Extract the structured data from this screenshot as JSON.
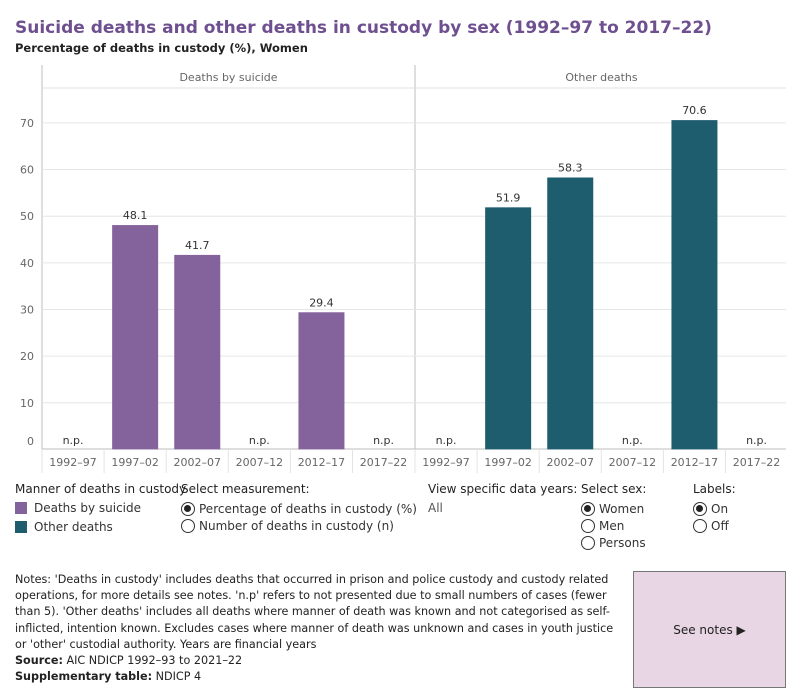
{
  "title": "Suicide deaths and other deaths in custody by sex (1992–97 to 2017–22)",
  "subtitle": "Percentage of deaths in custody (%), Women",
  "colors": {
    "suicide": "#84629b",
    "other": "#1e5d6e",
    "title": "#6e4f8f",
    "grid": "#e6e6e6",
    "panel_border": "#bdbdbd"
  },
  "chart_data": {
    "type": "bar",
    "categories": [
      "1992–97",
      "1997–02",
      "2002–07",
      "2007–12",
      "2012–17",
      "2017–22"
    ],
    "panels": [
      {
        "name": "Deaths by suicide",
        "color_key": "suicide",
        "values": [
          null,
          48.1,
          41.7,
          null,
          29.4,
          null
        ]
      },
      {
        "name": "Other deaths",
        "color_key": "other",
        "values": [
          null,
          51.9,
          58.3,
          null,
          70.6,
          null
        ]
      }
    ],
    "value_labels": {
      "Deaths by suicide": [
        "n.p.",
        "48.1",
        "41.7",
        "n.p.",
        "29.4",
        "n.p."
      ],
      "Other deaths": [
        "n.p.",
        "51.9",
        "58.3",
        "n.p.",
        "70.6",
        "n.p."
      ]
    },
    "ylim": [
      0,
      80
    ],
    "yticks": [
      0,
      10,
      20,
      30,
      40,
      50,
      60,
      70
    ],
    "grid": true
  },
  "legend": {
    "title": "Manner of deaths in custody",
    "items": [
      {
        "label": "Deaths by suicide",
        "color": "#84629b"
      },
      {
        "label": "Other deaths",
        "color": "#1e5d6e"
      }
    ]
  },
  "measurement": {
    "title": "Select measurement:",
    "options": [
      {
        "label": "Percentage of deaths in custody (%)",
        "selected": true
      },
      {
        "label": "Number of deaths in custody (n)",
        "selected": false
      }
    ]
  },
  "years": {
    "title": "View specific data years:",
    "value": "All"
  },
  "sex": {
    "title": "Select sex:",
    "options": [
      {
        "label": "Women",
        "selected": true
      },
      {
        "label": "Men",
        "selected": false
      },
      {
        "label": "Persons",
        "selected": false
      }
    ]
  },
  "labels": {
    "title": "Labels:",
    "options": [
      {
        "label": "On",
        "selected": true
      },
      {
        "label": "Off",
        "selected": false
      }
    ]
  },
  "notes": {
    "label": "Notes:",
    "text": "'Deaths in custody' includes deaths that occurred in prison and police custody and custody related operations, for more details see notes. 'n.p' refers to not presented due to small numbers of cases (fewer than 5). 'Other deaths' includes all deaths where manner of death was known and not categorised as self-inflicted, intention known. Excludes cases where manner of death was unknown and cases in youth justice or 'other' custodial authority. Years are financial years",
    "source_label": "Source:",
    "source": "AIC NDICP 1992–93 to 2021–22",
    "supp_label": "Supplementary table:",
    "supp": "NDICP 4"
  },
  "see_notes": "See notes ▶"
}
